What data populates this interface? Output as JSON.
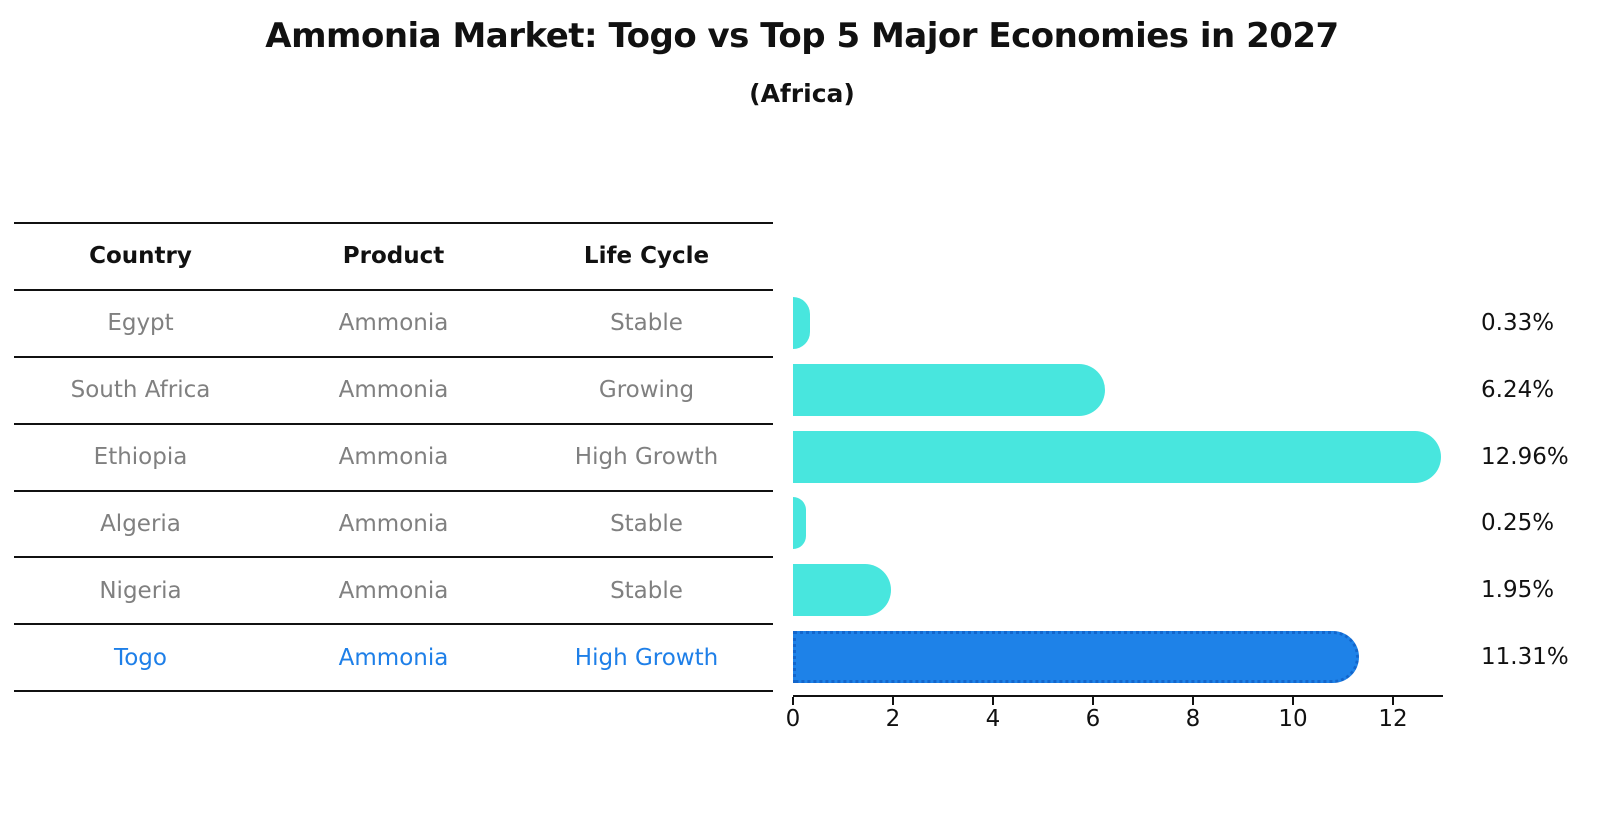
{
  "title": "Ammonia Market: Togo vs Top 5 Major Economies in 2027",
  "subtitle": "(Africa)",
  "table": {
    "headers": [
      "Country",
      "Product",
      "Life Cycle"
    ],
    "rows": [
      {
        "country": "Egypt",
        "product": "Ammonia",
        "life_cycle": "Stable",
        "highlight": false
      },
      {
        "country": "South Africa",
        "product": "Ammonia",
        "life_cycle": "Growing",
        "highlight": false
      },
      {
        "country": "Ethiopia",
        "product": "Ammonia",
        "life_cycle": "High Growth",
        "highlight": false
      },
      {
        "country": "Algeria",
        "product": "Ammonia",
        "life_cycle": "Stable",
        "highlight": false
      },
      {
        "country": "Nigeria",
        "product": "Ammonia",
        "life_cycle": "Stable",
        "highlight": false
      },
      {
        "country": "Togo",
        "product": "Ammonia",
        "life_cycle": "High Growth",
        "highlight": true
      }
    ]
  },
  "chart_data": {
    "type": "bar",
    "orientation": "horizontal",
    "title": "Ammonia Market: Togo vs Top 5 Major Economies in 2027",
    "subtitle": "(Africa)",
    "categories": [
      "Egypt",
      "South Africa",
      "Ethiopia",
      "Algeria",
      "Nigeria",
      "Togo"
    ],
    "values": [
      0.33,
      6.24,
      12.96,
      0.25,
      1.95,
      11.31
    ],
    "value_labels": [
      "0.33%",
      "6.24%",
      "12.96%",
      "0.25%",
      "1.95%",
      "11.31%"
    ],
    "highlight_index": 5,
    "xticks": [
      "0",
      "2",
      "4",
      "6",
      "8",
      "10",
      "12"
    ],
    "xtick_values": [
      0,
      2,
      4,
      6,
      8,
      10,
      12
    ],
    "xlim": [
      0,
      13
    ],
    "grid": false,
    "legend": "none",
    "xlabel": "",
    "ylabel": ""
  },
  "colors": {
    "bar": "#48E6DE",
    "highlight_bar": "#1E82E8",
    "highlight_bar_border": "#1366CC",
    "highlight_text": "#1E7FE8",
    "table_text": "#808080",
    "axis": "#111111"
  }
}
